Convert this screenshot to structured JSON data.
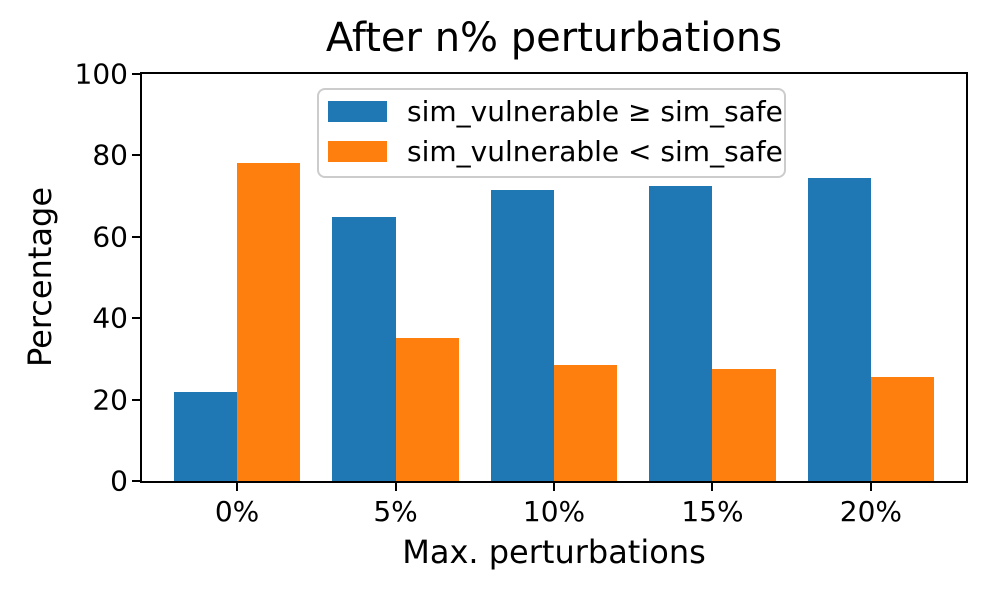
{
  "title": "After n% perturbations",
  "axis": {
    "xlabel": "Max. perturbations",
    "ylabel": "Percentage"
  },
  "legend": {
    "entries": [
      {
        "label": "sim_vulnerable ≥ sim_safe",
        "color": "#1f77b4"
      },
      {
        "label": "sim_vulnerable < sim_safe",
        "color": "#ff7f0e"
      }
    ]
  },
  "colors": {
    "blue": "#1f77b4",
    "orange": "#ff7f0e",
    "spine": "#000000",
    "legend_border": "#cccccc"
  },
  "chart_data": {
    "type": "bar",
    "title": "After n% perturbations",
    "xlabel": "Max. perturbations",
    "ylabel": "Percentage",
    "categories": [
      "0%",
      "5%",
      "10%",
      "15%",
      "20%"
    ],
    "series": [
      {
        "name": "sim_vulnerable ≥ sim_safe",
        "color": "#1f77b4",
        "values": [
          21.9,
          64.8,
          71.6,
          72.6,
          74.5
        ]
      },
      {
        "name": "sim_vulnerable < sim_safe",
        "color": "#ff7f0e",
        "values": [
          78.1,
          35.2,
          28.4,
          27.4,
          25.5
        ]
      }
    ],
    "ylim": [
      0,
      100
    ],
    "yticks": [
      0,
      20,
      40,
      60,
      80,
      100
    ],
    "grid": false,
    "legend_position": "upper center",
    "bar_group_width": 0.8,
    "x_margin": 0.6
  }
}
